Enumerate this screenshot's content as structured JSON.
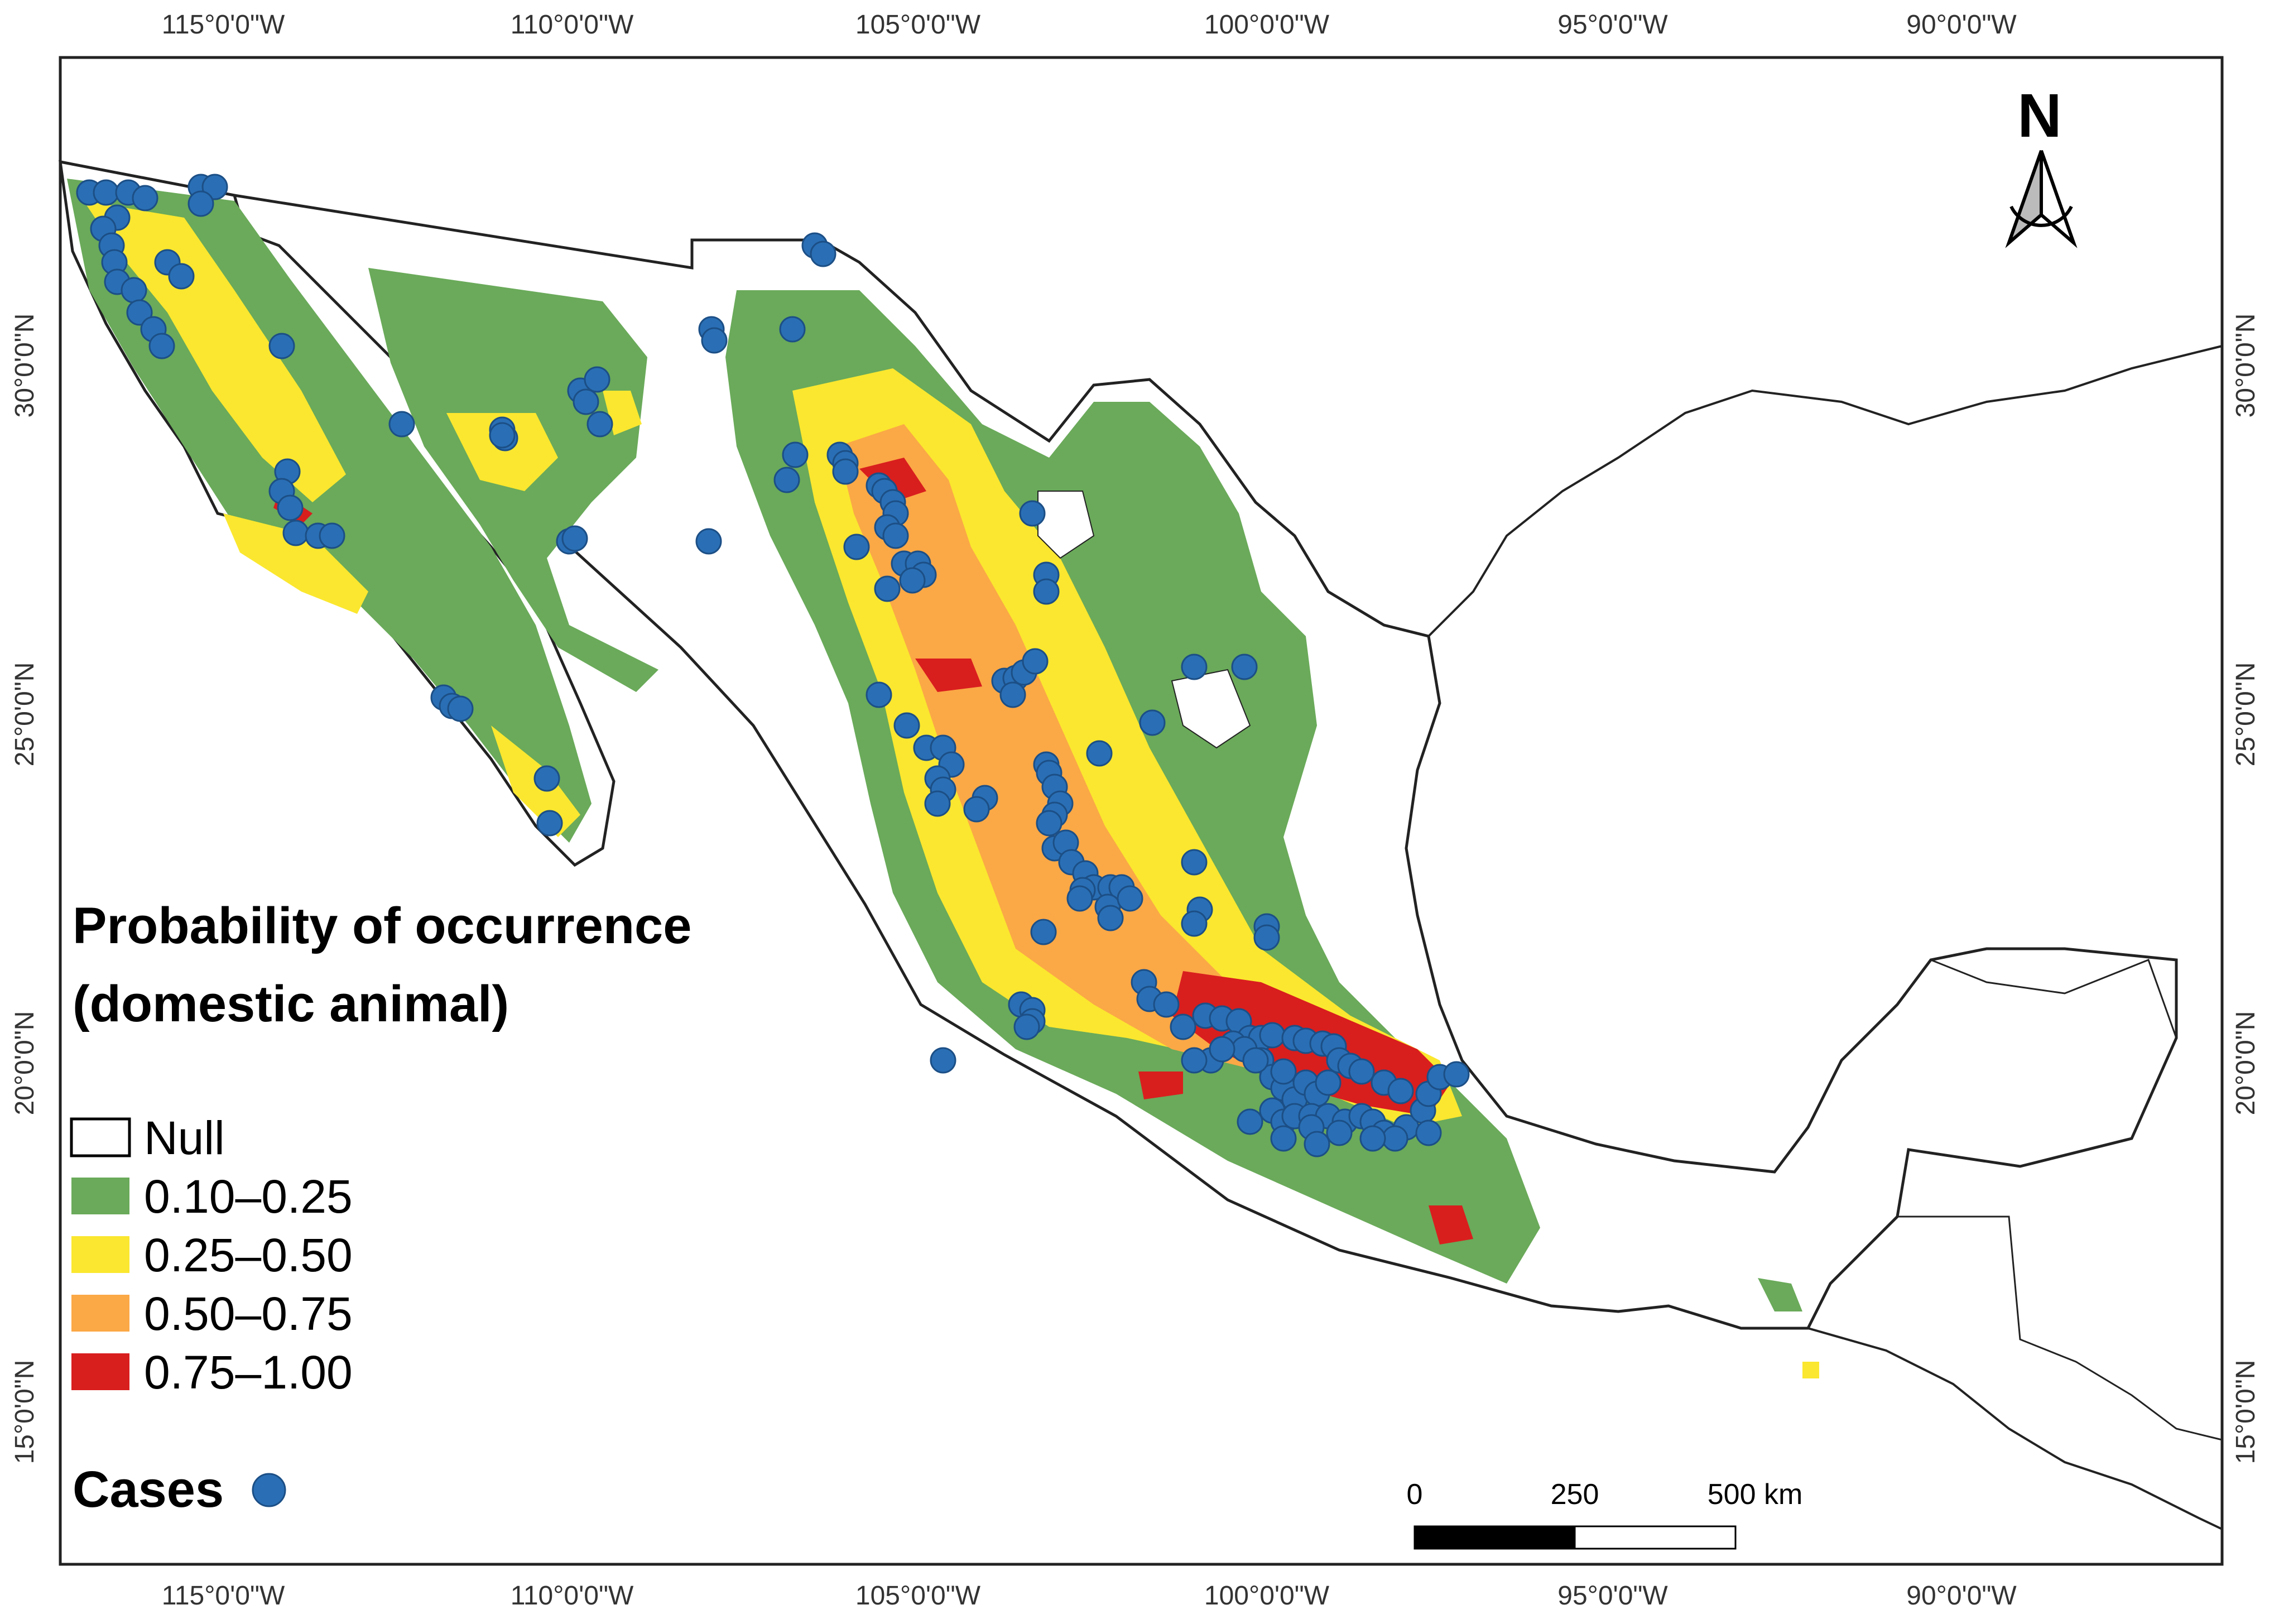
{
  "map": {
    "longitude_labels": [
      "115°0'0\"W",
      "110°0'0\"W",
      "105°0'0\"W",
      "100°0'0\"W",
      "95°0'0\"W",
      "90°0'0\"W"
    ],
    "latitude_labels": [
      "30°0'0\"N",
      "25°0'0\"N",
      "20°0'0\"N",
      "15°0'0\"N"
    ],
    "north_arrow_label": "N"
  },
  "legend": {
    "title_line1": "Probability of occurrence",
    "title_line2": "(domestic animal)",
    "items": [
      {
        "label": "Null",
        "color": "#ffffff"
      },
      {
        "label": "0.10–0.25",
        "color": "#6aaa5a"
      },
      {
        "label": "0.25–0.50",
        "color": "#fbe72f"
      },
      {
        "label": "0.50–0.75",
        "color": "#fba846"
      },
      {
        "label": "0.75–1.00",
        "color": "#d91e1e"
      }
    ],
    "cases_label": "Cases",
    "cases_color": "#2a6fb5"
  },
  "scale_bar": {
    "labels": [
      "0",
      "250",
      "500 km"
    ]
  }
}
